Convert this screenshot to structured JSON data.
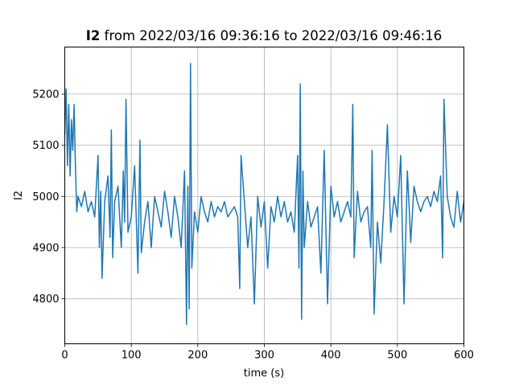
{
  "chart_data": {
    "type": "line",
    "title_bold": "I2",
    "title_rest": " from 2022/03/16 09:36:16 to 2022/03/16 09:46:16",
    "xlabel": "time (s)",
    "ylabel": "I2",
    "xlim": [
      0,
      600
    ],
    "ylim": [
      4712,
      5292
    ],
    "xticks": [
      0,
      100,
      200,
      300,
      400,
      500,
      600
    ],
    "yticks": [
      4800,
      4900,
      5000,
      5100,
      5200
    ],
    "grid": true,
    "color": "#1f77b4",
    "series": [
      {
        "x": [
          0,
          2,
          4,
          6,
          8,
          10,
          12,
          14,
          16,
          18,
          20,
          25,
          30,
          35,
          40,
          45,
          50,
          52,
          54,
          56,
          60,
          65,
          68,
          70,
          72,
          75,
          80,
          85,
          88,
          90,
          92,
          95,
          100,
          105,
          110,
          113,
          115,
          120,
          125,
          130,
          135,
          140,
          145,
          150,
          155,
          160,
          165,
          170,
          175,
          180,
          183,
          185,
          187,
          189,
          191,
          195,
          200,
          205,
          210,
          215,
          220,
          225,
          230,
          235,
          240,
          245,
          250,
          255,
          260,
          263,
          265,
          270,
          275,
          280,
          285,
          290,
          295,
          300,
          305,
          310,
          315,
          320,
          325,
          330,
          335,
          340,
          345,
          350,
          352,
          354,
          356,
          358,
          360,
          365,
          370,
          375,
          380,
          385,
          390,
          395,
          400,
          405,
          410,
          415,
          420,
          425,
          430,
          433,
          435,
          440,
          445,
          450,
          455,
          460,
          462,
          465,
          470,
          475,
          480,
          485,
          490,
          495,
          500,
          505,
          510,
          515,
          518,
          520,
          525,
          530,
          535,
          540,
          545,
          550,
          555,
          560,
          565,
          568,
          570,
          575,
          580,
          585,
          590,
          595,
          600
        ],
        "values": [
          5120,
          5210,
          5060,
          5180,
          5040,
          5150,
          5090,
          5180,
          5060,
          4970,
          5000,
          4980,
          5010,
          4970,
          4990,
          4960,
          5080,
          4900,
          5010,
          4840,
          4990,
          5040,
          4920,
          5130,
          4880,
          4990,
          5020,
          4900,
          5050,
          4950,
          5190,
          4930,
          4960,
          5060,
          4850,
          5110,
          4890,
          4950,
          4990,
          4900,
          5000,
          4970,
          4940,
          5010,
          4970,
          4920,
          5000,
          4960,
          4900,
          5050,
          4750,
          5020,
          4780,
          5260,
          4860,
          4970,
          4930,
          5000,
          4970,
          4950,
          4990,
          4960,
          4980,
          4970,
          4990,
          4960,
          4970,
          4980,
          4960,
          4820,
          5080,
          4990,
          4900,
          4960,
          4790,
          5000,
          4940,
          4990,
          4860,
          4980,
          4950,
          5000,
          4960,
          4990,
          4950,
          4970,
          4930,
          5080,
          4860,
          5220,
          4760,
          5050,
          4900,
          4990,
          4940,
          4960,
          4980,
          4850,
          5090,
          4790,
          5020,
          4960,
          4990,
          4950,
          4970,
          4990,
          4960,
          5180,
          4880,
          5010,
          4950,
          4970,
          4980,
          4900,
          5090,
          4770,
          4950,
          4870,
          4990,
          5140,
          4930,
          5000,
          4960,
          5080,
          4790,
          5050,
          4970,
          4910,
          5020,
          4990,
          4970,
          4990,
          5000,
          4980,
          5010,
          4990,
          5040,
          4880,
          5190,
          5000,
          4960,
          4940,
          5010,
          4950,
          4990
        ]
      }
    ]
  }
}
